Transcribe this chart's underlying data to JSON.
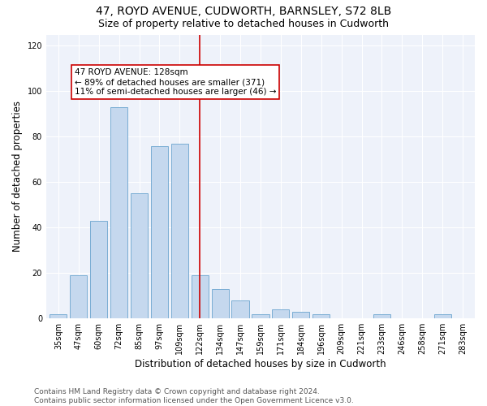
{
  "title1": "47, ROYD AVENUE, CUDWORTH, BARNSLEY, S72 8LB",
  "title2": "Size of property relative to detached houses in Cudworth",
  "xlabel": "Distribution of detached houses by size in Cudworth",
  "ylabel": "Number of detached properties",
  "categories": [
    "35sqm",
    "47sqm",
    "60sqm",
    "72sqm",
    "85sqm",
    "97sqm",
    "109sqm",
    "122sqm",
    "134sqm",
    "147sqm",
    "159sqm",
    "171sqm",
    "184sqm",
    "196sqm",
    "209sqm",
    "221sqm",
    "233sqm",
    "246sqm",
    "258sqm",
    "271sqm",
    "283sqm"
  ],
  "values": [
    2,
    19,
    43,
    93,
    55,
    76,
    77,
    19,
    13,
    8,
    2,
    4,
    3,
    2,
    0,
    0,
    2,
    0,
    0,
    2,
    0
  ],
  "bar_color": "#c5d8ee",
  "bar_edge_color": "#7aadd4",
  "vline_x_index": 7,
  "vline_color": "#cc0000",
  "annotation_text": "47 ROYD AVENUE: 128sqm\n← 89% of detached houses are smaller (371)\n11% of semi-detached houses are larger (46) →",
  "annotation_box_color": "#ffffff",
  "annotation_box_edge": "#cc0000",
  "ylim": [
    0,
    125
  ],
  "yticks": [
    0,
    20,
    40,
    60,
    80,
    100,
    120
  ],
  "bg_color": "#eef2fa",
  "footer": "Contains HM Land Registry data © Crown copyright and database right 2024.\nContains public sector information licensed under the Open Government Licence v3.0.",
  "title1_fontsize": 10,
  "title2_fontsize": 9,
  "xlabel_fontsize": 8.5,
  "ylabel_fontsize": 8.5,
  "tick_fontsize": 7,
  "annotation_fontsize": 7.5,
  "footer_fontsize": 6.5
}
